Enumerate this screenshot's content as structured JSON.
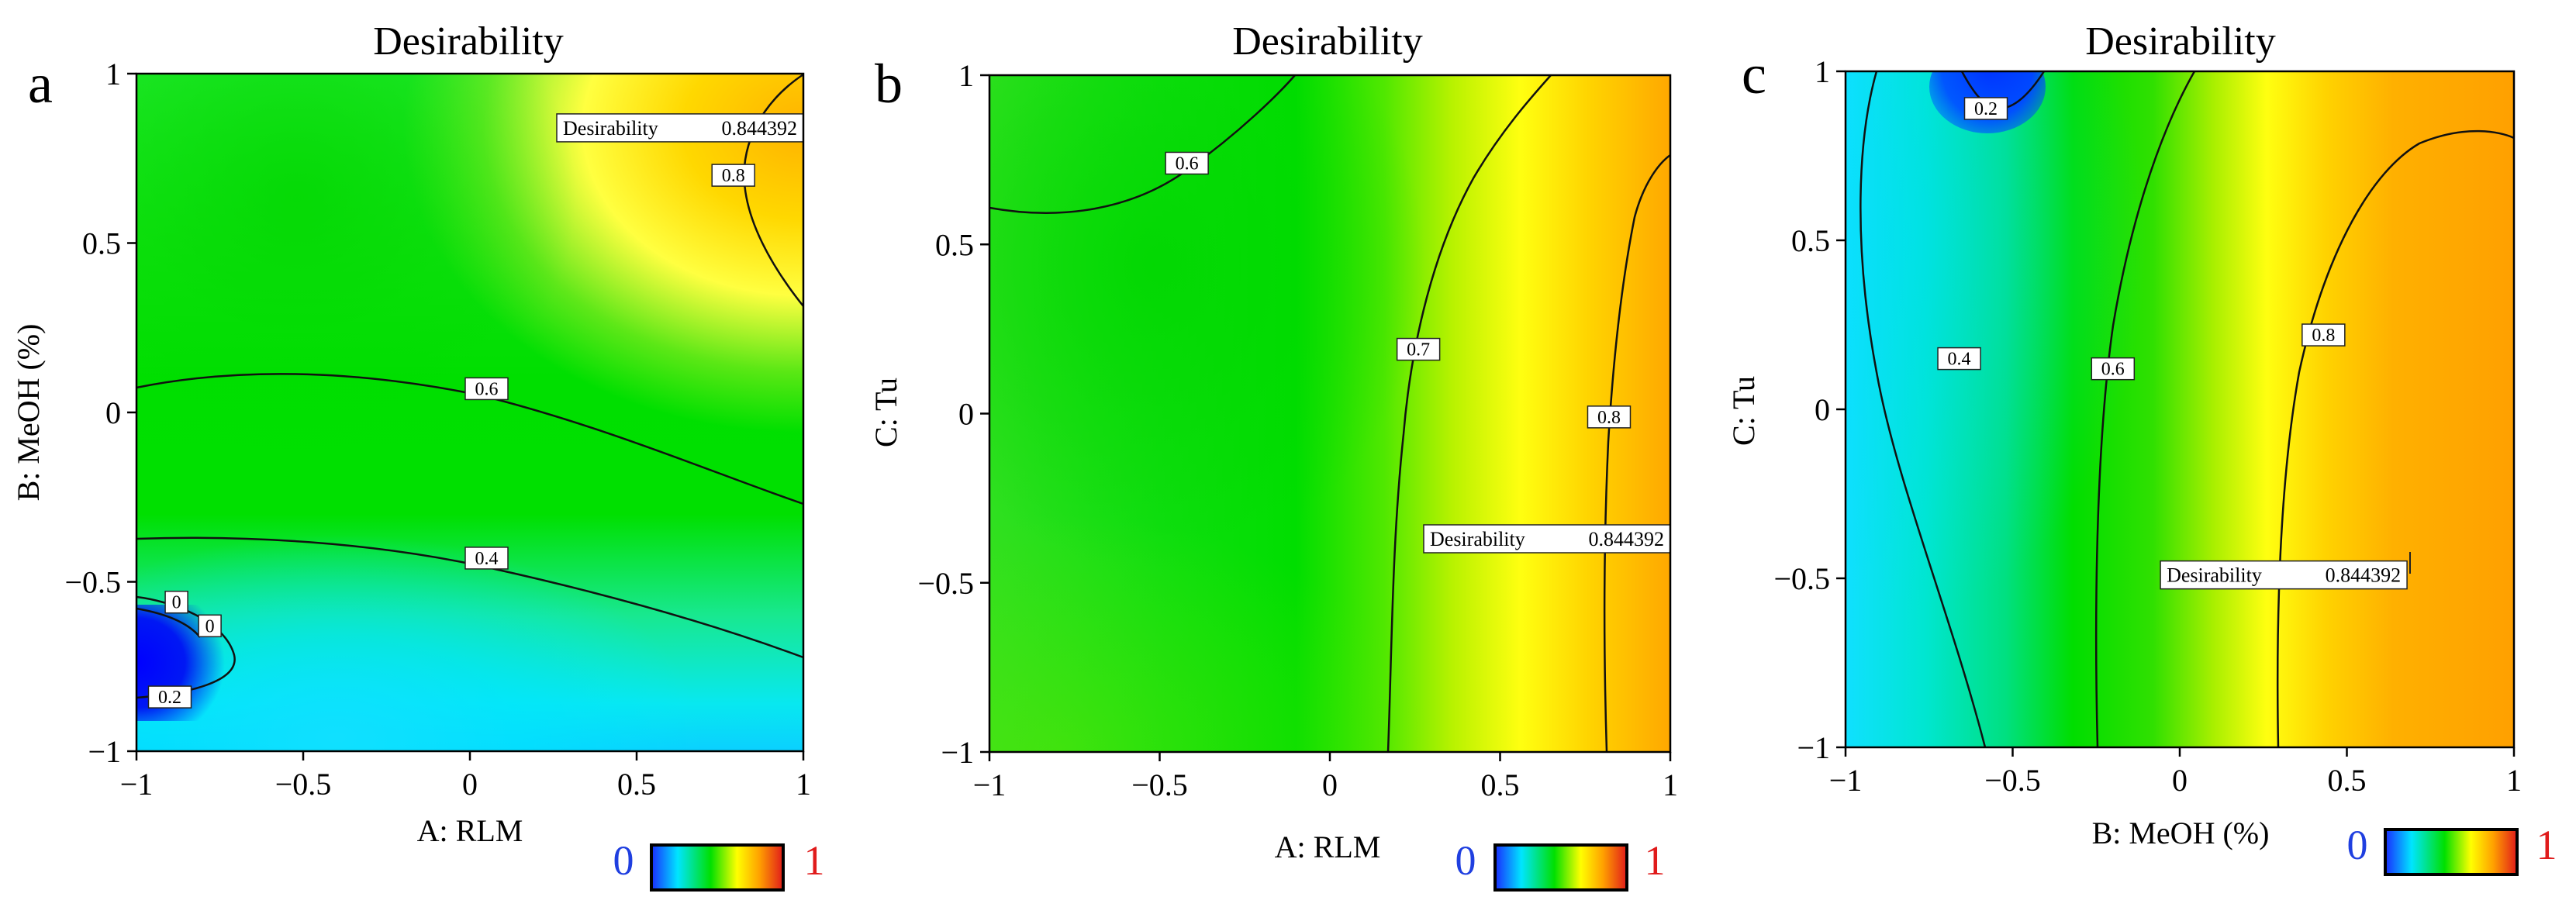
{
  "figure": {
    "colorbar_min_label": "0",
    "colorbar_max_label": "1",
    "colorbar_min_color": "#1f3fe0",
    "colorbar_max_color": "#e01b1b",
    "colorscale": [
      "#1a2bff",
      "#00e5ff",
      "#00e000",
      "#ffff00",
      "#ffa000",
      "#e11b1b"
    ]
  },
  "chart_data": [
    {
      "type": "contour",
      "panel_letter": "a",
      "title": "Desirability",
      "xlabel": "A: RLM",
      "ylabel": "B: MeOH (%)",
      "xlim": [
        -1,
        1
      ],
      "ylim": [
        -1,
        1
      ],
      "xticks": [
        "−1",
        "−0.5",
        "0",
        "0.5",
        "1"
      ],
      "yticks": [
        "−1",
        "−0.5",
        "0",
        "0.5",
        "1"
      ],
      "contour_labels": [
        {
          "text": "0",
          "x": -0.88,
          "y": -0.56
        },
        {
          "text": "0",
          "x": -0.78,
          "y": -0.63
        },
        {
          "text": "0.2",
          "x": -0.9,
          "y": -0.84
        },
        {
          "text": "0.4",
          "x": 0.05,
          "y": -0.43
        },
        {
          "text": "0.6",
          "x": 0.05,
          "y": 0.07
        },
        {
          "text": "0.8",
          "x": 0.79,
          "y": 0.7
        }
      ],
      "optimum": {
        "label": "Desirability",
        "value": "0.844392",
        "x": 1.0,
        "y": 0.84
      }
    },
    {
      "type": "contour",
      "panel_letter": "b",
      "title": "Desirability",
      "xlabel": "A: RLM",
      "ylabel": "C: Tu",
      "xlim": [
        -1,
        1
      ],
      "ylim": [
        -1,
        1
      ],
      "xticks": [
        "−1",
        "−0.5",
        "0",
        "0.5",
        "1"
      ],
      "yticks": [
        "−1",
        "−0.5",
        "0",
        "0.5",
        "1"
      ],
      "contour_labels": [
        {
          "text": "0.6",
          "x": -0.42,
          "y": 0.74
        },
        {
          "text": "0.7",
          "x": 0.26,
          "y": 0.19
        },
        {
          "text": "0.8",
          "x": 0.82,
          "y": -0.01
        }
      ],
      "optimum": {
        "label": "Desirability",
        "value": "0.844392",
        "x": 1.0,
        "y": -0.37
      }
    },
    {
      "type": "contour",
      "panel_letter": "c",
      "title": "Desirability",
      "xlabel": "B: MeOH (%)",
      "ylabel": "C: Tu",
      "xlim": [
        -1,
        1
      ],
      "ylim": [
        -1,
        1
      ],
      "xticks": [
        "−1",
        "−0.5",
        "0",
        "0.5",
        "1"
      ],
      "yticks": [
        "−1",
        "−0.5",
        "0",
        "0.5",
        "1"
      ],
      "contour_labels": [
        {
          "text": "0.2",
          "x": -0.58,
          "y": 0.89
        },
        {
          "text": "0.4",
          "x": -0.66,
          "y": 0.15
        },
        {
          "text": "0.6",
          "x": -0.2,
          "y": 0.12
        },
        {
          "text": "0.8",
          "x": 0.43,
          "y": 0.22
        }
      ],
      "optimum": {
        "label": "Desirability",
        "value": "0.844392",
        "x": 0.68,
        "y": -0.49
      }
    }
  ]
}
